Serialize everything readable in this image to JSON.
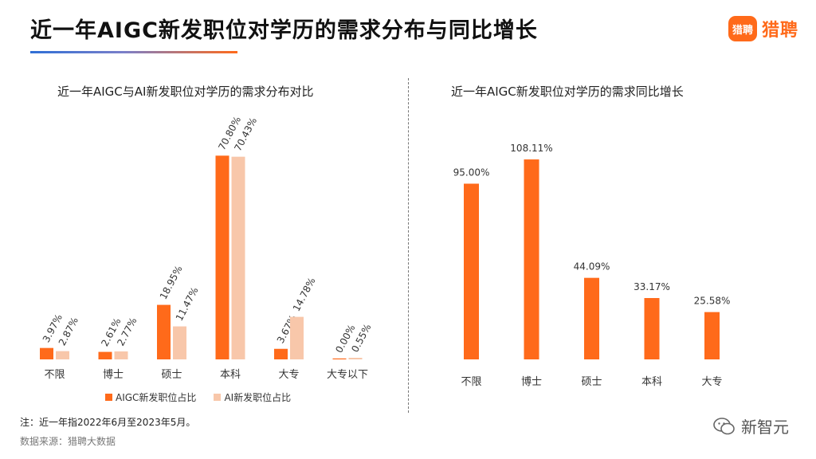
{
  "header": {
    "title": "近一年AIGC新发职位对学历的需求分布与同比增长",
    "brand_icon_text": "猎聘",
    "brand_text": "猎聘",
    "brand_color": "#ff6a1a"
  },
  "footer": {
    "note": "注：近一年指2022年6月至2023年5月。",
    "source": "数据来源：猎聘大数据",
    "watermark": "新智元",
    "watermark_icon": "wechat-icon"
  },
  "colors": {
    "primary": "#ff6a1a",
    "secondary": "#f8c7aa"
  },
  "chart_data": [
    {
      "type": "bar",
      "title": "近一年AIGC与AI新发职位对学历的需求分布对比",
      "categories": [
        "不限",
        "博士",
        "硕士",
        "本科",
        "大专",
        "大专以下"
      ],
      "series": [
        {
          "name": "AIGC新发职位占比",
          "values": [
            3.97,
            2.61,
            18.95,
            70.8,
            3.67,
            0.0
          ],
          "labels": [
            "3.97%",
            "2.61%",
            "18.95%",
            "70.80%",
            "3.67%",
            "0.00%"
          ],
          "color": "#ff6a1a"
        },
        {
          "name": "AI新发职位占比",
          "values": [
            2.87,
            2.77,
            11.47,
            70.43,
            14.78,
            0.55
          ],
          "labels": [
            "2.87%",
            "2.77%",
            "11.47%",
            "70.43%",
            "14.78%",
            "0.55%"
          ],
          "color": "#f8c7aa"
        }
      ],
      "ylim": [
        0,
        72
      ],
      "legend": "bottom",
      "grid": false
    },
    {
      "type": "bar",
      "title": "近一年AIGC新发职位对学历的需求同比增长",
      "categories": [
        "不限",
        "博士",
        "硕士",
        "本科",
        "大专"
      ],
      "values": [
        95.0,
        108.11,
        44.09,
        33.17,
        25.58
      ],
      "labels": [
        "95.00%",
        "108.11%",
        "44.09%",
        "33.17%",
        "25.58%"
      ],
      "ylim": [
        0,
        109
      ],
      "color": "#ff6a1a",
      "grid": false
    }
  ]
}
